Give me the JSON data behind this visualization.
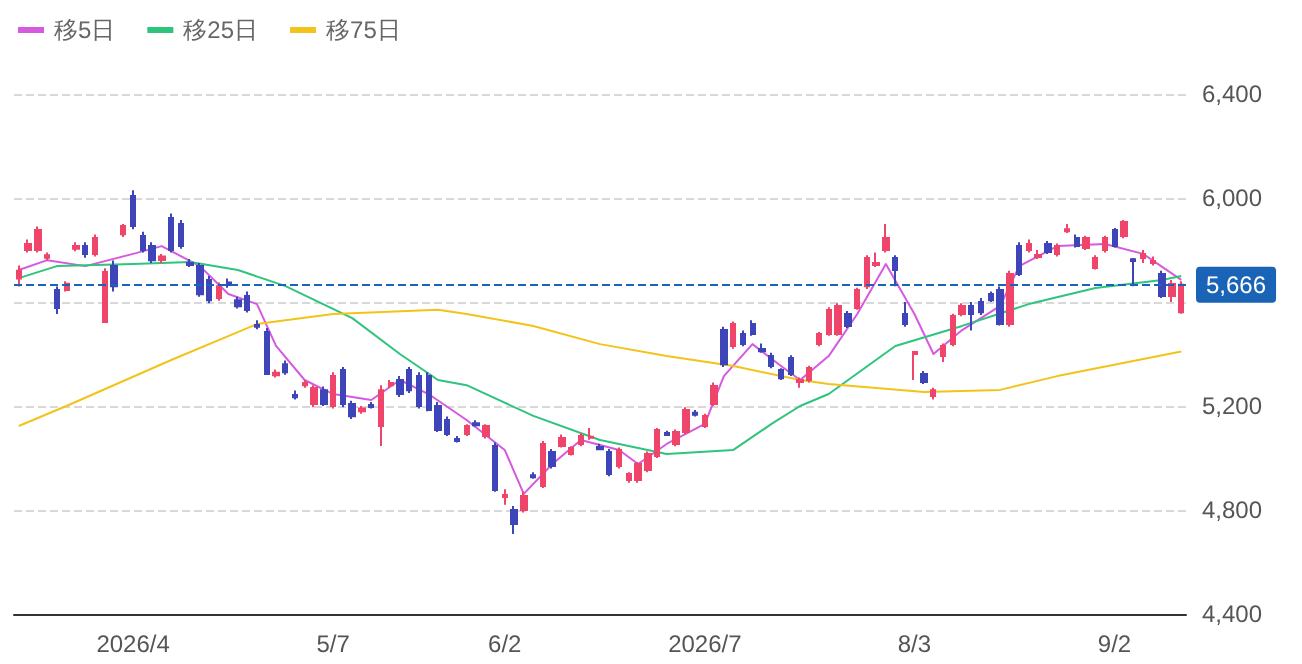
{
  "chart_data": {
    "type": "candlestick",
    "categories": [
      null,
      null,
      null,
      null,
      null,
      null,
      null,
      null,
      null,
      null,
      null,
      null,
      "2026/4",
      null,
      null,
      null,
      null,
      null,
      null,
      null,
      null,
      null,
      null,
      null,
      null,
      null,
      null,
      null,
      null,
      null,
      null,
      null,
      null,
      "5/7",
      null,
      null,
      null,
      null,
      null,
      null,
      null,
      null,
      null,
      null,
      null,
      null,
      null,
      null,
      null,
      null,
      null,
      "6/2",
      null,
      null,
      null,
      null,
      null,
      null,
      null,
      null,
      null,
      null,
      null,
      null,
      null,
      null,
      null,
      null,
      null,
      null,
      null,
      null,
      "2026/7",
      null,
      null,
      null,
      null,
      null,
      null,
      null,
      null,
      null,
      null,
      null,
      null,
      null,
      null,
      null,
      null,
      null,
      null,
      null,
      null,
      null,
      "8/3",
      null,
      null,
      null,
      null,
      null,
      null,
      null,
      null,
      null,
      null,
      null,
      null,
      null,
      null,
      null,
      null,
      null,
      null,
      null,
      null,
      "9/2",
      null,
      null,
      null,
      null,
      null,
      null,
      null
    ],
    "ohlc": [
      [
        5690,
        5740,
        5660,
        5720
      ],
      [
        5800,
        5840,
        5790,
        5823
      ],
      [
        5800,
        5890,
        5790,
        5877
      ],
      [
        5770,
        5790,
        5760,
        5780
      ],
      [
        5646,
        5660,
        5554,
        5577
      ],
      [
        5646,
        5680,
        5640,
        5670
      ],
      [
        5805,
        5830,
        5795,
        5815
      ],
      [
        5815,
        5830,
        5770,
        5785
      ],
      [
        5785,
        5860,
        5775,
        5846
      ],
      [
        5523,
        5730,
        5523,
        5715
      ],
      [
        5738,
        5760,
        5640,
        5661
      ],
      [
        5861,
        5900,
        5850,
        5892
      ],
      [
        6008,
        6030,
        5880,
        5892
      ],
      [
        5854,
        5870,
        5790,
        5800
      ],
      [
        5815,
        5830,
        5750,
        5761
      ],
      [
        5762,
        5785,
        5750,
        5775
      ],
      [
        5923,
        5940,
        5790,
        5800
      ],
      [
        5900,
        5915,
        5805,
        5815
      ],
      [
        5750,
        5765,
        5735,
        5742
      ],
      [
        5738,
        5750,
        5620,
        5630
      ],
      [
        5685,
        5700,
        5595,
        5607
      ],
      [
        5615,
        5675,
        5605,
        5661
      ],
      [
        5675,
        5690,
        5655,
        5665
      ],
      [
        5607,
        5620,
        5575,
        5584
      ],
      [
        5623,
        5640,
        5560,
        5569
      ],
      [
        5512,
        5530,
        5495,
        5505
      ],
      [
        5485,
        5500,
        5320,
        5323
      ],
      [
        5318,
        5340,
        5310,
        5328
      ],
      [
        5361,
        5375,
        5320,
        5330
      ],
      [
        5242,
        5260,
        5225,
        5234
      ],
      [
        5280,
        5300,
        5270,
        5288
      ],
      [
        5208,
        5280,
        5195,
        5269
      ],
      [
        5261,
        5275,
        5200,
        5208
      ],
      [
        5200,
        5330,
        5190,
        5315
      ],
      [
        5338,
        5350,
        5195,
        5208
      ],
      [
        5208,
        5220,
        5150,
        5161
      ],
      [
        5180,
        5200,
        5170,
        5190
      ],
      [
        5204,
        5215,
        5190,
        5196
      ],
      [
        5123,
        5280,
        5046,
        5261
      ],
      [
        5280,
        5300,
        5270,
        5288
      ],
      [
        5300,
        5315,
        5235,
        5246
      ],
      [
        5338,
        5350,
        5250,
        5261
      ],
      [
        5315,
        5330,
        5190,
        5200
      ],
      [
        5315,
        5330,
        5180,
        5185
      ],
      [
        5200,
        5215,
        5100,
        5108
      ],
      [
        5146,
        5160,
        5085,
        5092
      ],
      [
        5073,
        5085,
        5060,
        5065
      ],
      [
        5092,
        5130,
        5085,
        5123
      ],
      [
        5134,
        5145,
        5120,
        5126
      ],
      [
        5085,
        5130,
        5075,
        5123
      ],
      [
        5046,
        5060,
        4870,
        4877
      ],
      [
        4850,
        4880,
        4820,
        4858
      ],
      [
        4800,
        4815,
        4708,
        4746
      ],
      [
        4800,
        4870,
        4790,
        4854
      ],
      [
        4934,
        4945,
        4920,
        4926
      ],
      [
        4892,
        5065,
        4885,
        5054
      ],
      [
        5023,
        5035,
        4960,
        4969
      ],
      [
        5046,
        5090,
        5040,
        5077
      ],
      [
        5015,
        5045,
        5010,
        5038
      ],
      [
        5054,
        5095,
        5045,
        5085
      ],
      [
        5078,
        5115,
        5070,
        5082
      ],
      [
        5042,
        5055,
        5030,
        5034
      ],
      [
        5023,
        5035,
        4930,
        4938
      ],
      [
        4969,
        5040,
        4960,
        5031
      ],
      [
        4915,
        4945,
        4905,
        4938
      ],
      [
        4915,
        4985,
        4905,
        4977
      ],
      [
        4954,
        5025,
        4945,
        5015
      ],
      [
        5008,
        5115,
        5000,
        5108
      ],
      [
        5096,
        5105,
        5085,
        5088
      ],
      [
        5054,
        5110,
        5045,
        5100
      ],
      [
        5100,
        5195,
        5090,
        5185
      ],
      [
        5174,
        5185,
        5160,
        5166
      ],
      [
        5123,
        5170,
        5115,
        5162
      ],
      [
        5208,
        5290,
        5200,
        5277
      ],
      [
        5492,
        5505,
        5350,
        5361
      ],
      [
        5431,
        5525,
        5420,
        5515
      ],
      [
        5477,
        5490,
        5430,
        5438
      ],
      [
        5515,
        5530,
        5470,
        5477
      ],
      [
        5419,
        5440,
        5405,
        5411
      ],
      [
        5392,
        5405,
        5345,
        5354
      ],
      [
        5338,
        5345,
        5300,
        5307
      ],
      [
        5385,
        5395,
        5315,
        5323
      ],
      [
        5292,
        5310,
        5270,
        5300
      ],
      [
        5300,
        5355,
        5290,
        5346
      ],
      [
        5438,
        5485,
        5430,
        5477
      ],
      [
        5477,
        5580,
        5470,
        5569
      ],
      [
        5477,
        5595,
        5470,
        5585
      ],
      [
        5554,
        5565,
        5500,
        5508
      ],
      [
        5577,
        5655,
        5570,
        5646
      ],
      [
        5661,
        5780,
        5650,
        5769
      ],
      [
        5742,
        5790,
        5735,
        5750
      ],
      [
        5800,
        5900,
        5790,
        5846
      ],
      [
        5769,
        5780,
        5661,
        5723
      ],
      [
        5554,
        5600,
        5505,
        5515
      ],
      [
        5400,
        5410,
        5300,
        5408
      ],
      [
        5323,
        5335,
        5285,
        5292
      ],
      [
        5238,
        5270,
        5225,
        5261
      ],
      [
        5392,
        5440,
        5369,
        5431
      ],
      [
        5438,
        5555,
        5430,
        5546
      ],
      [
        5554,
        5595,
        5545,
        5585
      ],
      [
        5585,
        5600,
        5490,
        5554
      ],
      [
        5600,
        5615,
        5550,
        5561
      ],
      [
        5631,
        5640,
        5600,
        5607
      ],
      [
        5646,
        5660,
        5510,
        5515
      ],
      [
        5515,
        5720,
        5505,
        5708
      ],
      [
        5815,
        5830,
        5700,
        5708
      ],
      [
        5800,
        5840,
        5790,
        5823
      ],
      [
        5773,
        5800,
        5765,
        5781
      ],
      [
        5823,
        5835,
        5785,
        5792
      ],
      [
        5785,
        5825,
        5775,
        5815
      ],
      [
        5872,
        5900,
        5865,
        5880
      ],
      [
        5846,
        5860,
        5810,
        5815
      ],
      [
        5808,
        5855,
        5800,
        5846
      ],
      [
        5731,
        5780,
        5725,
        5769
      ],
      [
        5800,
        5855,
        5790,
        5846
      ],
      [
        5877,
        5885,
        5810,
        5815
      ],
      [
        5854,
        5915,
        5845,
        5908
      ],
      [
        5764,
        5769,
        5661,
        5758
      ],
      [
        5769,
        5800,
        5750,
        5785
      ],
      [
        5750,
        5775,
        5740,
        5758
      ],
      [
        5708,
        5720,
        5615,
        5623
      ],
      [
        5623,
        5685,
        5600,
        5669
      ],
      [
        5561,
        5680,
        5555,
        5666
      ]
    ],
    "colors": [
      "#f0456a",
      "#f0456a",
      "#f0456a",
      "#f0456a",
      "#3d45b8",
      "#f0456a",
      "#f0456a",
      "#3d45b8",
      "#f0456a",
      "#f0456a",
      "#3d45b8",
      "#f0456a",
      "#3d45b8",
      "#3d45b8",
      "#3d45b8",
      "#f0456a",
      "#3d45b8",
      "#3d45b8",
      "#3d45b8",
      "#3d45b8",
      "#3d45b8",
      "#f0456a",
      "#3d45b8",
      "#3d45b8",
      "#3d45b8",
      "#3d45b8",
      "#3d45b8",
      "#f0456a",
      "#3d45b8",
      "#3d45b8",
      "#f0456a",
      "#f0456a",
      "#3d45b8",
      "#f0456a",
      "#3d45b8",
      "#3d45b8",
      "#f0456a",
      "#3d45b8",
      "#f0456a",
      "#f0456a",
      "#3d45b8",
      "#3d45b8",
      "#3d45b8",
      "#3d45b8",
      "#3d45b8",
      "#3d45b8",
      "#3d45b8",
      "#f0456a",
      "#3d45b8",
      "#f0456a",
      "#3d45b8",
      "#f0456a",
      "#3d45b8",
      "#f0456a",
      "#3d45b8",
      "#f0456a",
      "#3d45b8",
      "#f0456a",
      "#f0456a",
      "#f0456a",
      "#f0456a",
      "#3d45b8",
      "#3d45b8",
      "#f0456a",
      "#f0456a",
      "#f0456a",
      "#f0456a",
      "#f0456a",
      "#3d45b8",
      "#f0456a",
      "#f0456a",
      "#3d45b8",
      "#f0456a",
      "#f0456a",
      "#3d45b8",
      "#f0456a",
      "#3d45b8",
      "#3d45b8",
      "#3d45b8",
      "#3d45b8",
      "#3d45b8",
      "#3d45b8",
      "#f0456a",
      "#f0456a",
      "#f0456a",
      "#f0456a",
      "#f0456a",
      "#3d45b8",
      "#f0456a",
      "#f0456a",
      "#f0456a",
      "#f0456a",
      "#3d45b8",
      "#3d45b8",
      "#f0456a",
      "#3d45b8",
      "#f0456a",
      "#f0456a",
      "#f0456a",
      "#f0456a",
      "#3d45b8",
      "#3d45b8",
      "#3d45b8",
      "#3d45b8",
      "#f0456a",
      "#3d45b8",
      "#f0456a",
      "#f0456a",
      "#3d45b8",
      "#f0456a",
      "#f0456a",
      "#3d45b8",
      "#f0456a",
      "#f0456a",
      "#f0456a",
      "#3d45b8",
      "#f0456a",
      "#3d45b8",
      "#f0456a",
      "#f0456a",
      "#3d45b8",
      "#f0456a",
      "#f0456a"
    ],
    "series": [
      {
        "name": "移5日",
        "type": "line",
        "color": "#d65ae0",
        "values": [
          5723,
          null,
          null,
          5761,
          null,
          null,
          null,
          5738,
          null,
          null,
          null,
          null,
          5785,
          null,
          null,
          5815,
          null,
          null,
          null,
          5738,
          null,
          null,
          5631,
          null,
          null,
          5592,
          null,
          5431,
          null,
          null,
          5300,
          null,
          null,
          5246,
          null,
          null,
          null,
          5223,
          null,
          null,
          5300,
          null,
          null,
          5246,
          null,
          null,
          null,
          5146,
          null,
          null,
          null,
          5031,
          null,
          4862,
          null,
          null,
          4977,
          null,
          null,
          5069,
          null,
          null,
          null,
          5031,
          null,
          4977,
          null,
          null,
          5054,
          null,
          null,
          null,
          5131,
          null,
          5315,
          null,
          null,
          5438,
          null,
          null,
          5354,
          null,
          5300,
          null,
          null,
          5392,
          null,
          null,
          5554,
          null,
          null,
          5746,
          null,
          null,
          5554,
          null,
          5400,
          null,
          null,
          5492,
          null,
          null,
          null,
          5585,
          null,
          5738,
          null,
          null,
          null,
          5815,
          null,
          null,
          null,
          null,
          5823,
          null,
          null,
          null,
          5785,
          null,
          null,
          null,
          5685
        ]
      },
      {
        "name": "移25日",
        "type": "line",
        "color": "#2fc47e",
        "values": [
          5692,
          null,
          null,
          null,
          5738,
          null,
          null,
          null,
          null,
          null,
          null,
          null,
          5746,
          null,
          null,
          null,
          null,
          null,
          5754,
          null,
          null,
          null,
          null,
          5723,
          null,
          null,
          null,
          null,
          5661,
          null,
          null,
          null,
          null,
          null,
          null,
          5538,
          null,
          null,
          null,
          null,
          5400,
          null,
          null,
          null,
          5300,
          null,
          null,
          5280,
          null,
          null,
          null,
          null,
          null,
          null,
          5162,
          null,
          null,
          null,
          null,
          null,
          null,
          5069,
          null,
          null,
          null,
          null,
          null,
          null,
          5015,
          null,
          null,
          null,
          null,
          null,
          null,
          5031,
          null,
          null,
          null,
          5131,
          null,
          null,
          5200,
          null,
          null,
          5246,
          null,
          null,
          null,
          null,
          null,
          null,
          5431,
          null,
          null,
          null,
          null,
          null,
          null,
          5508,
          null,
          null,
          null,
          null,
          null,
          null,
          5592,
          null,
          null,
          null,
          null,
          null,
          null,
          5654,
          null,
          null,
          null,
          null,
          null,
          null,
          5685,
          null,
          5700
        ]
      },
      {
        "name": "移75日",
        "type": "line",
        "color": "#f2c31b",
        "values": [
          5123,
          null,
          null,
          null,
          null,
          5200,
          null,
          null,
          null,
          null,
          null,
          null,
          null,
          null,
          null,
          null,
          5377,
          null,
          null,
          null,
          null,
          null,
          null,
          null,
          null,
          5515,
          null,
          null,
          null,
          null,
          null,
          null,
          null,
          5554,
          null,
          null,
          null,
          null,
          null,
          null,
          null,
          null,
          null,
          null,
          5570,
          null,
          null,
          5554,
          null,
          null,
          null,
          null,
          null,
          null,
          5508,
          null,
          null,
          null,
          null,
          null,
          null,
          5438,
          null,
          null,
          null,
          null,
          null,
          null,
          5392,
          null,
          null,
          null,
          null,
          null,
          null,
          5354,
          null,
          null,
          null,
          null,
          null,
          null,
          5300,
          null,
          null,
          5285,
          null,
          null,
          null,
          null,
          null,
          null,
          null,
          null,
          null,
          5254,
          null,
          null,
          null,
          null,
          null,
          null,
          null,
          5262,
          null,
          null,
          null,
          null,
          null,
          5315,
          null,
          null,
          null,
          null,
          null,
          null,
          null,
          null,
          null,
          null,
          null,
          null,
          5410
        ]
      }
    ],
    "ylim": [
      4400,
      6400
    ],
    "yticks": [
      {
        "value": 4400,
        "label": "4,400"
      },
      {
        "value": 4800,
        "label": "4,800"
      },
      {
        "value": 5200,
        "label": "5,200"
      },
      {
        "value": 5600,
        "label": null
      },
      {
        "value": 6000,
        "label": "6,000"
      },
      {
        "value": 6400,
        "label": "6,400"
      }
    ],
    "grid": "y",
    "legend": "top left",
    "marker": "none",
    "ref_lines": [
      {
        "axis": "y",
        "value": 5666,
        "label": "5,666",
        "color": "#1a64b8",
        "line_style": "dashed"
      }
    ]
  }
}
